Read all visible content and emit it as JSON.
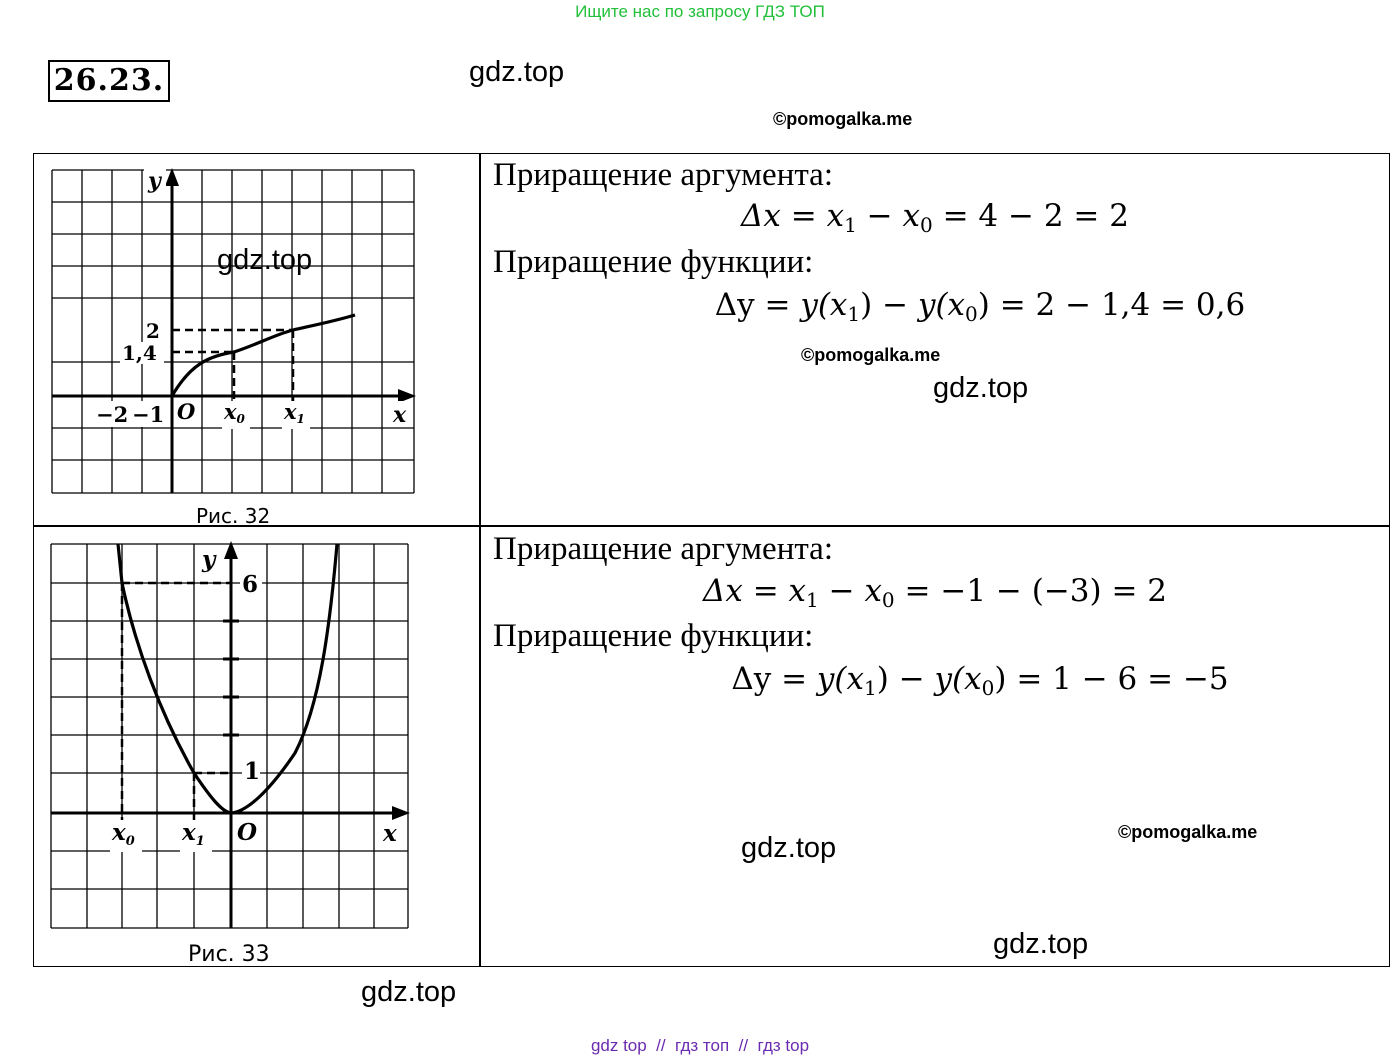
{
  "header": {
    "banner": "Ищите нас по запросу ГДЗ ТОП",
    "problem_number": "26.23."
  },
  "watermarks": {
    "gdz": "gdz.top",
    "pomogalka": "©pomogalka.me"
  },
  "row1": {
    "caption": "Рис. 32",
    "labels": {
      "y": "y",
      "x": "x",
      "origin": "O",
      "tick_2": "2",
      "tick_14": "1,4",
      "tick_neg2": "−2",
      "tick_neg1": "−1",
      "x0": "x",
      "x0_sub": "0",
      "x1": "x",
      "x1_sub": "1"
    },
    "arg_heading": "Приращение аргумента:",
    "arg_formula": {
      "delta": "Δx",
      "x1": "x",
      "x1_sub": "1",
      "x0": "x",
      "x0_sub": "0",
      "rest": "= 4 − 2 = 2"
    },
    "func_heading": "Приращение функции:",
    "func_formula": {
      "delta": "Δy",
      "yx1": "y(x",
      "x1_sub": "1",
      "yx0": "y(x",
      "x0_sub": "0",
      "rest": "= 2 − 1,4 = 0,6"
    }
  },
  "row2": {
    "caption": "Рис. 33",
    "labels": {
      "y": "y",
      "x": "x",
      "origin": "O",
      "tick_6": "6",
      "tick_1": "1",
      "x0": "x",
      "x0_sub": "0",
      "x1": "x",
      "x1_sub": "1"
    },
    "arg_heading": "Приращение аргумента:",
    "arg_formula": {
      "delta": "Δx",
      "x1": "x",
      "x1_sub": "1",
      "x0": "x",
      "x0_sub": "0",
      "rest": "= −1 − (−3) = 2"
    },
    "func_heading": "Приращение функции:",
    "func_formula": {
      "delta": "Δy",
      "yx1": "y(x",
      "x1_sub": "1",
      "yx0": "y(x",
      "x0_sub": "0",
      "rest": "= 1 − 6 = −5"
    }
  },
  "footer": {
    "links": "gdz top  //  гдз топ  //  гдз top"
  }
}
